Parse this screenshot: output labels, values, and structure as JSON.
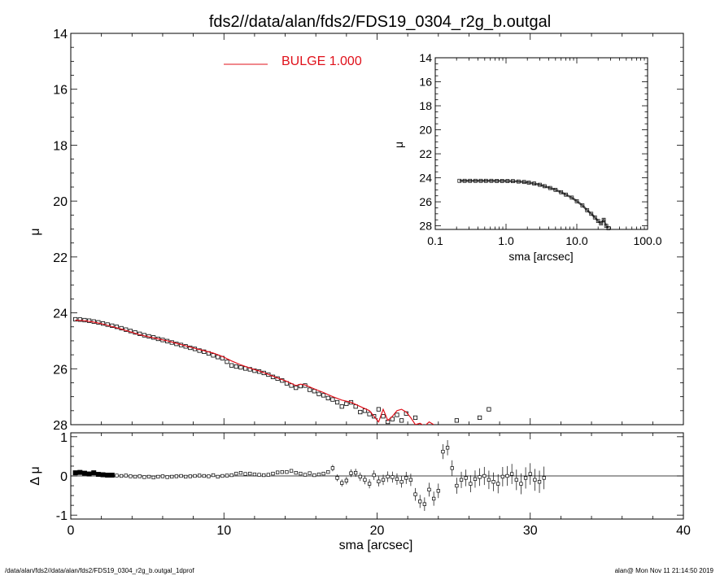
{
  "title": "fds2//data/alan/fds2/FDS19_0304_r2g_b.outgal",
  "footer": {
    "left": "/data/alan/fds2//data/alan/fds2/FDS19_0304_r2g_b.outgal_1dprof",
    "right": "alan@  Mon Nov 11 21:14:50 2019"
  },
  "colors": {
    "model": "#e0101a",
    "data": "#000000",
    "legend_text": "#e0101a"
  },
  "chart_data": [
    {
      "type": "scatter",
      "panel": "main",
      "ylabel": "μ",
      "xlim": [
        0,
        40
      ],
      "ylim": [
        28,
        14
      ],
      "y_ticks": [
        "14",
        "16",
        "18",
        "20",
        "22",
        "24",
        "26",
        "28"
      ],
      "legend": {
        "label": "BULGE  1.000",
        "placement": "top-left"
      },
      "series": [
        {
          "name": "data",
          "marker": "square",
          "x": [
            0.3,
            0.6,
            0.9,
            1.2,
            1.5,
            1.8,
            2.1,
            2.4,
            2.7,
            3.0,
            3.3,
            3.6,
            3.9,
            4.2,
            4.5,
            4.8,
            5.1,
            5.4,
            5.7,
            6.0,
            6.3,
            6.6,
            6.9,
            7.2,
            7.5,
            7.8,
            8.1,
            8.4,
            8.7,
            9.0,
            9.3,
            9.6,
            9.9,
            10.2,
            10.5,
            10.8,
            11.1,
            11.4,
            11.7,
            12.0,
            12.3,
            12.6,
            12.9,
            13.2,
            13.5,
            13.8,
            14.1,
            14.4,
            14.7,
            15.0,
            15.3,
            15.6,
            15.9,
            16.2,
            16.5,
            16.8,
            17.1,
            17.4,
            17.7,
            18.0,
            18.3,
            18.6,
            18.9,
            19.2,
            19.5,
            19.8,
            20.1,
            20.4,
            20.7,
            21.0,
            21.3,
            21.6,
            21.9,
            22.5,
            23.4,
            24.3,
            25.2,
            26.1,
            26.7,
            27.3
          ],
          "y": [
            24.23,
            24.24,
            24.26,
            24.28,
            24.31,
            24.34,
            24.38,
            24.42,
            24.46,
            24.5,
            24.55,
            24.6,
            24.65,
            24.7,
            24.75,
            24.8,
            24.84,
            24.88,
            24.93,
            24.97,
            25.01,
            25.06,
            25.11,
            25.15,
            25.2,
            25.25,
            25.29,
            25.35,
            25.39,
            25.45,
            25.52,
            25.58,
            25.62,
            25.75,
            25.88,
            25.92,
            25.95,
            25.99,
            26.02,
            26.07,
            26.1,
            26.15,
            26.21,
            26.29,
            26.35,
            26.42,
            26.52,
            26.6,
            26.68,
            26.62,
            26.6,
            26.75,
            26.8,
            26.9,
            26.95,
            27.05,
            27.1,
            27.2,
            27.35,
            27.25,
            27.2,
            27.35,
            27.55,
            27.5,
            27.62,
            27.7,
            27.45,
            27.7,
            27.9,
            27.8,
            27.65,
            27.85,
            27.6,
            27.75,
            28.05,
            28.1,
            27.85,
            28.0,
            27.75,
            27.45
          ]
        },
        {
          "name": "BULGE  1.000",
          "marker": "line",
          "x": [
            0.3,
            0.9,
            1.5,
            2.1,
            2.7,
            3.3,
            3.9,
            4.5,
            5.1,
            5.7,
            6.3,
            6.9,
            7.5,
            8.1,
            8.7,
            9.3,
            9.9,
            10.5,
            11.1,
            11.7,
            12.3,
            12.9,
            13.5,
            14.1,
            14.7,
            15.0,
            15.3,
            15.9,
            16.5,
            17.1,
            17.7,
            18.3,
            18.9,
            19.5,
            19.8,
            20.1,
            20.4,
            20.7,
            21.0,
            21.3,
            21.6,
            21.9,
            22.2,
            22.5,
            22.8,
            23.1,
            23.4,
            23.7
          ],
          "y": [
            24.26,
            24.28,
            24.33,
            24.4,
            24.49,
            24.58,
            24.68,
            24.78,
            24.86,
            24.93,
            25.0,
            25.09,
            25.18,
            25.27,
            25.35,
            25.44,
            25.56,
            25.72,
            25.86,
            25.98,
            26.08,
            26.2,
            26.33,
            26.45,
            26.6,
            26.55,
            26.58,
            26.72,
            26.85,
            27.0,
            27.12,
            27.2,
            27.35,
            27.5,
            27.7,
            27.9,
            27.45,
            27.85,
            27.7,
            27.5,
            27.45,
            27.55,
            27.75,
            28.0,
            27.95,
            28.05,
            27.9,
            28.0
          ]
        }
      ]
    },
    {
      "type": "scatter",
      "panel": "inset",
      "xlabel": "sma [arcsec]",
      "ylabel": "μ",
      "x_scale": "log",
      "xlim": [
        0.1,
        100
      ],
      "ylim": [
        28.3,
        14
      ],
      "x_ticks": [
        "0.1",
        "1.0",
        "10.0",
        "100.0"
      ],
      "y_ticks": [
        "14",
        "16",
        "18",
        "20",
        "22",
        "24",
        "26",
        "28"
      ],
      "series": [
        {
          "name": "data",
          "marker": "square",
          "x": [
            0.22,
            0.26,
            0.31,
            0.37,
            0.44,
            0.52,
            0.62,
            0.74,
            0.88,
            1.05,
            1.25,
            1.5,
            1.8,
            2.1,
            2.5,
            3.0,
            3.5,
            4.2,
            5.0,
            6.0,
            7.0,
            8.5,
            10.0,
            12.0,
            14.0,
            16.0,
            18.0,
            20.0,
            22.0,
            24.0,
            26.0,
            28.0
          ],
          "y": [
            24.25,
            24.25,
            24.25,
            24.25,
            24.25,
            24.25,
            24.25,
            24.26,
            24.26,
            24.27,
            24.28,
            24.31,
            24.35,
            24.4,
            24.48,
            24.58,
            24.7,
            24.85,
            25.0,
            25.2,
            25.4,
            25.65,
            25.95,
            26.3,
            26.7,
            27.0,
            27.3,
            27.6,
            27.8,
            27.5,
            28.0,
            28.2
          ]
        }
      ]
    },
    {
      "type": "scatter",
      "panel": "residual",
      "xlabel": "sma [arcsec]",
      "ylabel": "Δ μ",
      "xlim": [
        0,
        40
      ],
      "ylim": [
        -1.1,
        1.1
      ],
      "x_ticks": [
        "0",
        "10",
        "20",
        "30",
        "40"
      ],
      "y_ticks": [
        "1",
        "0",
        "-1"
      ],
      "reference_line": 0,
      "series": [
        {
          "name": "residual",
          "marker": "square",
          "x": [
            0.3,
            0.6,
            0.9,
            1.2,
            1.5,
            1.8,
            2.1,
            2.4,
            2.7,
            3.0,
            3.3,
            3.6,
            3.9,
            4.2,
            4.5,
            4.8,
            5.1,
            5.4,
            5.7,
            6.0,
            6.3,
            6.6,
            6.9,
            7.2,
            7.5,
            7.8,
            8.1,
            8.4,
            8.7,
            9.0,
            9.3,
            9.6,
            9.9,
            10.2,
            10.5,
            10.8,
            11.1,
            11.4,
            11.7,
            12.0,
            12.3,
            12.6,
            12.9,
            13.2,
            13.5,
            13.8,
            14.1,
            14.4,
            14.7,
            15.0,
            15.3,
            15.6,
            15.9,
            16.2,
            16.5,
            16.8,
            17.1,
            17.4,
            17.7,
            18.0,
            18.3,
            18.6,
            18.9,
            19.2,
            19.5,
            19.8,
            20.1,
            20.4,
            20.7,
            21.0,
            21.3,
            21.6,
            21.9,
            22.2,
            22.5,
            22.8,
            23.1,
            23.4,
            23.7,
            24.0,
            24.3,
            24.6,
            24.9,
            25.2,
            25.5,
            25.8,
            26.1,
            26.4,
            26.7,
            27.0,
            27.3,
            27.6,
            27.9,
            28.2,
            28.5,
            28.8,
            29.1,
            29.4,
            29.7,
            30.0,
            30.3,
            30.6,
            30.9
          ],
          "y": [
            0.08,
            0.09,
            0.07,
            0.05,
            0.08,
            0.04,
            0.03,
            0.02,
            0.02,
            0.01,
            0.0,
            0.01,
            -0.01,
            -0.02,
            -0.01,
            -0.03,
            -0.02,
            -0.04,
            -0.02,
            -0.01,
            -0.03,
            -0.02,
            -0.01,
            0.0,
            -0.02,
            -0.01,
            0.0,
            0.01,
            0.0,
            -0.01,
            0.02,
            -0.02,
            0.0,
            0.01,
            0.02,
            0.06,
            0.08,
            0.05,
            0.06,
            0.04,
            0.03,
            0.02,
            0.03,
            0.06,
            0.09,
            0.1,
            0.1,
            0.13,
            0.08,
            0.06,
            0.03,
            0.07,
            0.02,
            0.04,
            0.06,
            0.1,
            0.2,
            -0.05,
            -0.18,
            -0.12,
            0.07,
            0.08,
            -0.02,
            -0.1,
            -0.2,
            0.02,
            -0.14,
            -0.1,
            -0.02,
            -0.03,
            -0.08,
            -0.15,
            -0.05,
            -0.1,
            -0.47,
            -0.65,
            -0.72,
            -0.35,
            -0.58,
            -0.38,
            0.62,
            0.72,
            0.2,
            -0.25,
            -0.1,
            -0.05,
            -0.2,
            -0.08,
            -0.03,
            0.0,
            -0.1,
            -0.15,
            -0.2,
            -0.02,
            0.0,
            0.05,
            -0.1,
            -0.2,
            -0.05,
            0.05,
            -0.1,
            -0.15,
            -0.05
          ]
        }
      ]
    }
  ]
}
